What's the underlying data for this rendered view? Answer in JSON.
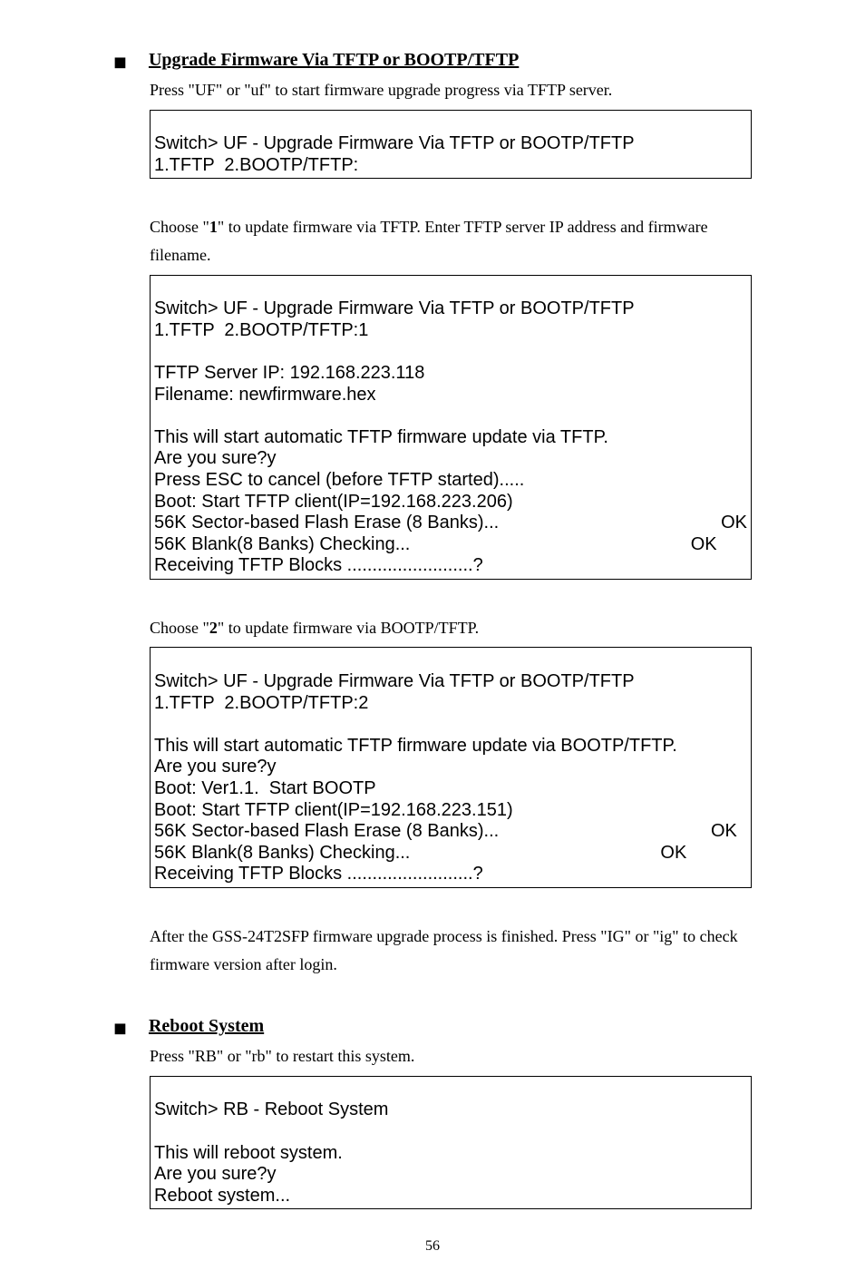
{
  "page_number": "56",
  "section1": {
    "title": "Upgrade Firmware Via TFTP or BOOTP/TFTP",
    "intro": "Press \"UF\" or \"uf\" to start firmware upgrade progress via TFTP server.",
    "terminal1": {
      "l1": "Switch> UF - Upgrade Firmware Via TFTP or BOOTP/TFTP",
      "l2": "1.TFTP  2.BOOTP/TFTP:"
    },
    "para2a": "Choose \"",
    "para2b": "1",
    "para2c": "\" to update firmware via TFTP. Enter TFTP server IP address and firmware filename.",
    "terminal2": {
      "l1": "Switch> UF - Upgrade Firmware Via TFTP or BOOTP/TFTP",
      "l2": "1.TFTP  2.BOOTP/TFTP:1",
      "l3": "TFTP Server IP: 192.168.223.118",
      "l4": "Filename: newfirmware.hex",
      "l5": "This will start automatic TFTP firmware update via TFTP.",
      "l6": "Are you sure?y",
      "l7": "Press ESC to cancel (before TFTP started).....",
      "l8": "Boot: Start TFTP client(IP=192.168.223.206)",
      "l9a": "56K Sector-based Flash Erase (8 Banks)...",
      "l9b": "OK",
      "l10a": "56K Blank(8 Banks) Checking...",
      "l10b": "OK      ",
      "l11": "Receiving TFTP Blocks .........................?"
    },
    "para3a": "Choose \"",
    "para3b": "2",
    "para3c": "\" to update firmware via BOOTP/TFTP.",
    "terminal3": {
      "l1": "Switch> UF - Upgrade Firmware Via TFTP or BOOTP/TFTP",
      "l2": "1.TFTP  2.BOOTP/TFTP:2",
      "l3": "This will start automatic TFTP firmware update via BOOTP/TFTP.",
      "l4": "Are you sure?y",
      "l5": "Boot: Ver1.1.  Start BOOTP",
      "l6": "Boot: Start TFTP client(IP=192.168.223.151)",
      "l7a": "56K Sector-based Flash Erase (8 Banks)...",
      "l7b": "OK  ",
      "l8a": "56K Blank(8 Banks) Checking...",
      "l8b": "OK            ",
      "l9": "Receiving TFTP Blocks .........................?"
    },
    "para4": "After the GSS-24T2SFP firmware upgrade process is finished. Press \"IG\" or \"ig\" to check firmware version after login."
  },
  "section2": {
    "title": "Reboot System",
    "intro": "Press \"RB\" or \"rb\" to restart this system.",
    "terminal1": {
      "l1": "Switch> RB - Reboot System",
      "l2": "This will reboot system.",
      "l3": "Are you sure?y",
      "l4": "Reboot system..."
    }
  }
}
